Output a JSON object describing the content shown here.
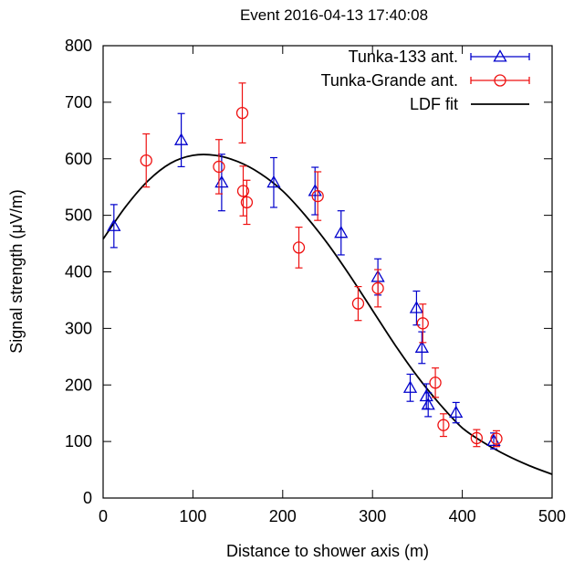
{
  "chart_data": {
    "type": "scatter",
    "title": "Event 2016-04-13 17:40:08",
    "xlabel": "Distance to shower axis (m)",
    "ylabel": "Signal strength (μV/m)",
    "xlim": [
      0,
      500
    ],
    "ylim": [
      0,
      800
    ],
    "xticks": [
      0,
      100,
      200,
      300,
      400,
      500
    ],
    "yticks": [
      0,
      100,
      200,
      300,
      400,
      500,
      600,
      700,
      800
    ],
    "grid": false,
    "legend_position": "top-right",
    "series": [
      {
        "name": "Tunka-133 ant.",
        "marker": "triangle",
        "color": "#0000cc",
        "points": [
          {
            "x": 12,
            "y": 481,
            "err": 38
          },
          {
            "x": 87,
            "y": 633,
            "err": 47
          },
          {
            "x": 132,
            "y": 558,
            "err": 50
          },
          {
            "x": 190,
            "y": 558,
            "err": 44
          },
          {
            "x": 236,
            "y": 543,
            "err": 42
          },
          {
            "x": 265,
            "y": 469,
            "err": 39
          },
          {
            "x": 306,
            "y": 391,
            "err": 32
          },
          {
            "x": 342,
            "y": 195,
            "err": 24
          },
          {
            "x": 349,
            "y": 336,
            "err": 30
          },
          {
            "x": 355,
            "y": 266,
            "err": 28
          },
          {
            "x": 360,
            "y": 180,
            "err": 22
          },
          {
            "x": 362,
            "y": 165,
            "err": 21
          },
          {
            "x": 393,
            "y": 151,
            "err": 18
          },
          {
            "x": 435,
            "y": 101,
            "err": 14
          }
        ]
      },
      {
        "name": "Tunka-Grande ant.",
        "marker": "circle",
        "color": "#ee1111",
        "points": [
          {
            "x": 48,
            "y": 597,
            "err": 47
          },
          {
            "x": 129,
            "y": 586,
            "err": 48
          },
          {
            "x": 155,
            "y": 681,
            "err": 53
          },
          {
            "x": 156,
            "y": 543,
            "err": 44
          },
          {
            "x": 160,
            "y": 523,
            "err": 39
          },
          {
            "x": 218,
            "y": 443,
            "err": 36
          },
          {
            "x": 239,
            "y": 534,
            "err": 43
          },
          {
            "x": 284,
            "y": 344,
            "err": 30
          },
          {
            "x": 306,
            "y": 371,
            "err": 33
          },
          {
            "x": 356,
            "y": 309,
            "err": 34
          },
          {
            "x": 370,
            "y": 204,
            "err": 26
          },
          {
            "x": 379,
            "y": 129,
            "err": 20
          },
          {
            "x": 416,
            "y": 106,
            "err": 15
          },
          {
            "x": 438,
            "y": 105,
            "err": 14
          }
        ]
      },
      {
        "name": "LDF fit",
        "type": "line",
        "color": "#000000",
        "x": [
          0,
          25,
          50,
          75,
          100,
          125,
          150,
          175,
          200,
          225,
          250,
          275,
          300,
          325,
          350,
          375,
          400,
          425,
          450,
          475,
          500
        ],
        "y": [
          458,
          515,
          561,
          592,
          606,
          606,
          595,
          574,
          543,
          500,
          450,
          393,
          332,
          271,
          215,
          166,
          124,
          97,
          75,
          57,
          42
        ]
      }
    ]
  }
}
